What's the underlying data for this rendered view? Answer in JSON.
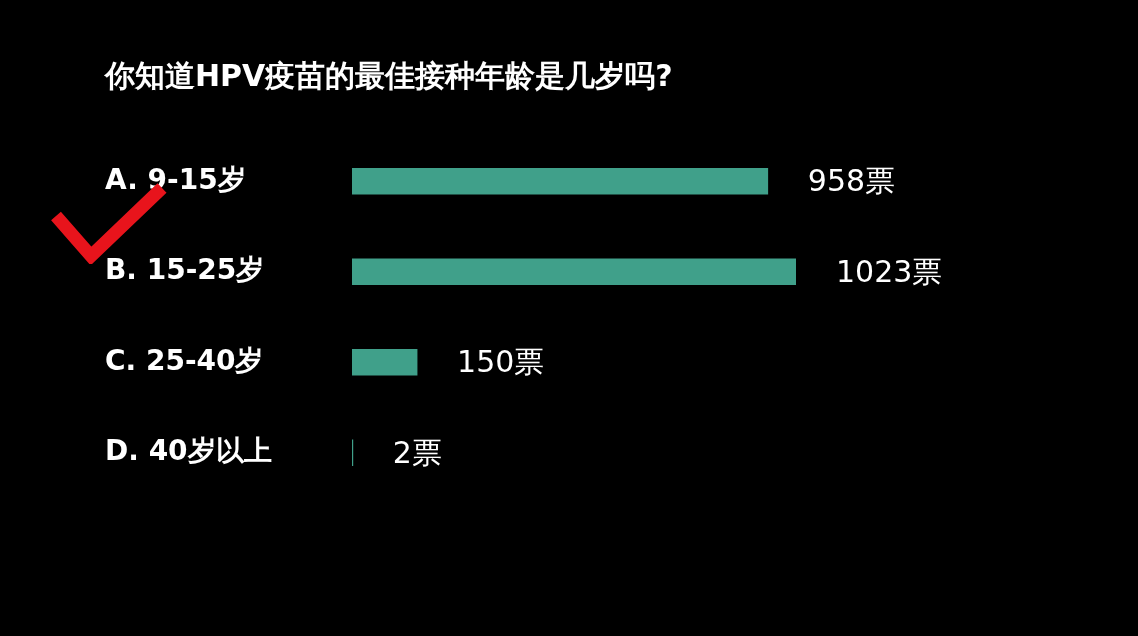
{
  "chart_data": {
    "type": "bar",
    "orientation": "horizontal",
    "title": "你知道HPV疫苗的最佳接种年龄是几岁吗?",
    "categories": [
      "A. 9-15岁",
      "B. 15-25岁",
      "C. 25-40岁",
      "D. 40岁以上"
    ],
    "values": [
      958,
      1023,
      150,
      2
    ],
    "value_labels": [
      "958票",
      "1023票",
      "150票",
      "2票"
    ],
    "color": "#40a08a"
  }
}
